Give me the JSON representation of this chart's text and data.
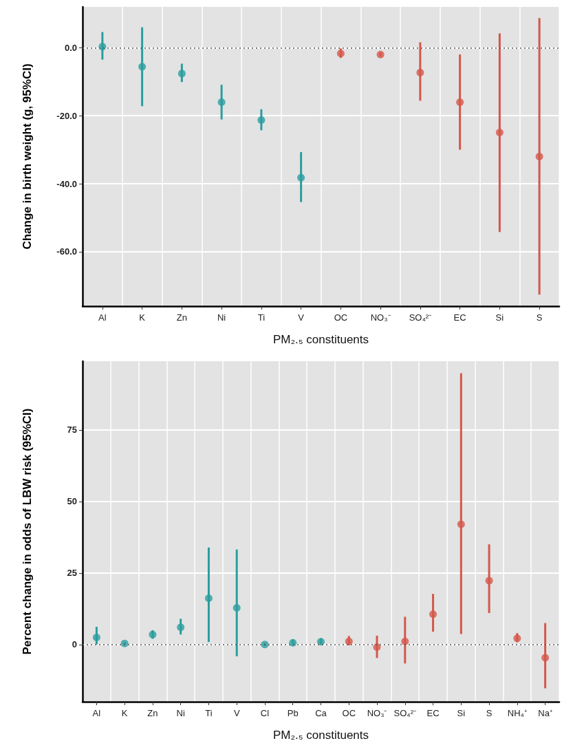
{
  "chart_data": [
    {
      "type": "scatter",
      "xlabel": "PM₂.₅ constituents",
      "ylabel": "Change in birth weight (g, 95%CI)",
      "categories": [
        "Al",
        "K",
        "Zn",
        "Ni",
        "Ti",
        "V",
        "OC",
        "NO₃⁻",
        "SO₄²⁻",
        "EC",
        "Si",
        "S"
      ],
      "series": [
        {
          "color": "#2a9d9f",
          "values": [
            0.3,
            -5.6,
            -7.6,
            -16.0,
            -21.3,
            -38.2,
            null,
            null,
            null,
            null,
            null,
            null
          ],
          "errors": [
            [
              -3.5,
              4.6
            ],
            [
              -17.2,
              6.0
            ],
            [
              -10.1,
              -4.7
            ],
            [
              -21.1,
              -10.9
            ],
            [
              -24.3,
              -18.1
            ],
            [
              -45.4,
              -30.7
            ],
            null,
            null,
            null,
            null,
            null,
            null
          ]
        },
        {
          "color": "#d4574a",
          "values": [
            null,
            null,
            null,
            null,
            null,
            null,
            -1.7,
            -2.0,
            -7.3,
            -16.0,
            -24.9,
            -32.0
          ],
          "errors": [
            null,
            null,
            null,
            null,
            null,
            null,
            [
              -3.0,
              -0.2
            ],
            [
              -2.6,
              -1.4
            ],
            [
              -15.6,
              1.6
            ],
            [
              -30.0,
              -2.0
            ],
            [
              -54.2,
              4.2
            ],
            [
              -72.6,
              8.7
            ]
          ]
        }
      ],
      "ylim": [
        -76,
        12
      ],
      "yticks": [
        {
          "value": -60,
          "label": "-60.0"
        },
        {
          "value": -40,
          "label": "-40.0"
        },
        {
          "value": -20,
          "label": "-20.0"
        },
        {
          "value": 0,
          "label": "0.0"
        }
      ],
      "ref_lines": [
        {
          "axis": "y",
          "value": 0,
          "line_style": "dotted"
        }
      ],
      "grid": true,
      "marker": "circle"
    },
    {
      "type": "scatter",
      "xlabel": "PM₂.₅ constituents",
      "ylabel": "Percent change in odds of LBW risk (95%CI)",
      "categories": [
        "Al",
        "K",
        "Zn",
        "Ni",
        "Ti",
        "V",
        "Cl",
        "Pb",
        "Ca",
        "OC",
        "NO₃⁻",
        "SO₄²⁻",
        "EC",
        "Si",
        "S",
        "NH₄⁺",
        "Na⁺"
      ],
      "series": [
        {
          "color": "#2a9d9f",
          "values": [
            2.5,
            0.4,
            3.5,
            6.0,
            16.2,
            12.8,
            0,
            0.6,
            1.0,
            null,
            null,
            null,
            null,
            null,
            null,
            null,
            null
          ],
          "errors": [
            [
              0,
              6.2
            ],
            [
              0,
              0.8
            ],
            [
              2.0,
              5.0
            ],
            [
              3.5,
              9.0
            ],
            [
              0.9,
              33.9
            ],
            [
              -4.1,
              33.2
            ],
            [
              -0.5,
              0.5
            ],
            [
              -0.2,
              1.8
            ],
            [
              0,
              2.2
            ],
            null,
            null,
            null,
            null,
            null,
            null,
            null,
            null
          ]
        },
        {
          "color": "#d4574a",
          "values": [
            null,
            null,
            null,
            null,
            null,
            null,
            null,
            null,
            null,
            1.1,
            -0.9,
            1.1,
            10.6,
            42.0,
            22.3,
            2.2,
            -4.6
          ],
          "errors": [
            null,
            null,
            null,
            null,
            null,
            null,
            null,
            null,
            null,
            [
              -0.3,
              3.0
            ],
            [
              -4.7,
              3.1
            ],
            [
              -6.6,
              9.7
            ],
            [
              4.5,
              17.7
            ],
            [
              3.7,
              94.8
            ],
            [
              11.0,
              35.0
            ],
            [
              0.8,
              4.0
            ],
            [
              -15.3,
              7.5
            ]
          ]
        }
      ],
      "ylim": [
        -20,
        99
      ],
      "yticks": [
        0,
        25,
        50,
        75
      ],
      "ref_lines": [
        {
          "axis": "y",
          "value": 0,
          "line_style": "dotted"
        }
      ],
      "grid": true,
      "marker": "circle"
    }
  ]
}
